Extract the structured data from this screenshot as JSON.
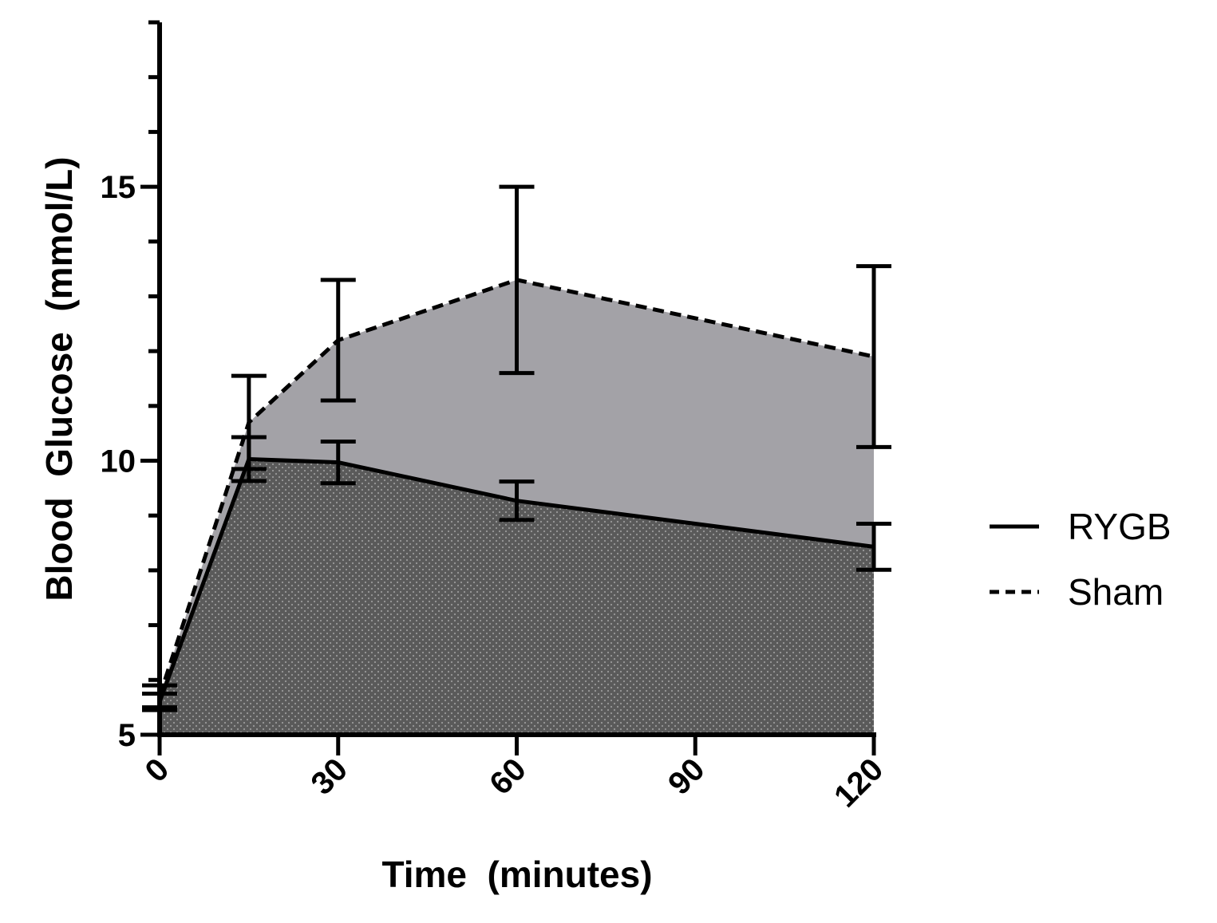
{
  "chart_data": {
    "type": "area",
    "xlabel": "Time  (minutes)",
    "ylabel": "Blood  Glucose  (mmol/L)",
    "xlim": [
      0,
      120
    ],
    "ylim": [
      5,
      18
    ],
    "x_ticks": [
      0,
      30,
      60,
      90,
      120
    ],
    "x_tick_labels": [
      "0",
      "30",
      "60",
      "90",
      "120"
    ],
    "y_ticks": [
      5,
      10,
      15
    ],
    "y_tick_labels": [
      "5",
      "10",
      "15"
    ],
    "y_minor_ticks": [
      6,
      7,
      8,
      9,
      11,
      12,
      13,
      14,
      16,
      17,
      18
    ],
    "grid": false,
    "legend_position": "right",
    "x": [
      0,
      15,
      30,
      60,
      120
    ],
    "series": [
      {
        "name": "Sham",
        "line_style": "dashed",
        "fill_color": "#a3a2a7",
        "values": [
          5.7,
          10.7,
          12.2,
          13.3,
          11.9
        ],
        "error": [
          0.2,
          0.85,
          1.1,
          1.7,
          1.65
        ]
      },
      {
        "name": "RYGB",
        "line_style": "solid",
        "fill_color": "#5a5a5a",
        "fill_pattern": "dotted",
        "values": [
          5.6,
          10.03,
          9.97,
          9.27,
          8.43
        ],
        "error": [
          0.15,
          0.4,
          0.38,
          0.35,
          0.42
        ]
      }
    ]
  }
}
